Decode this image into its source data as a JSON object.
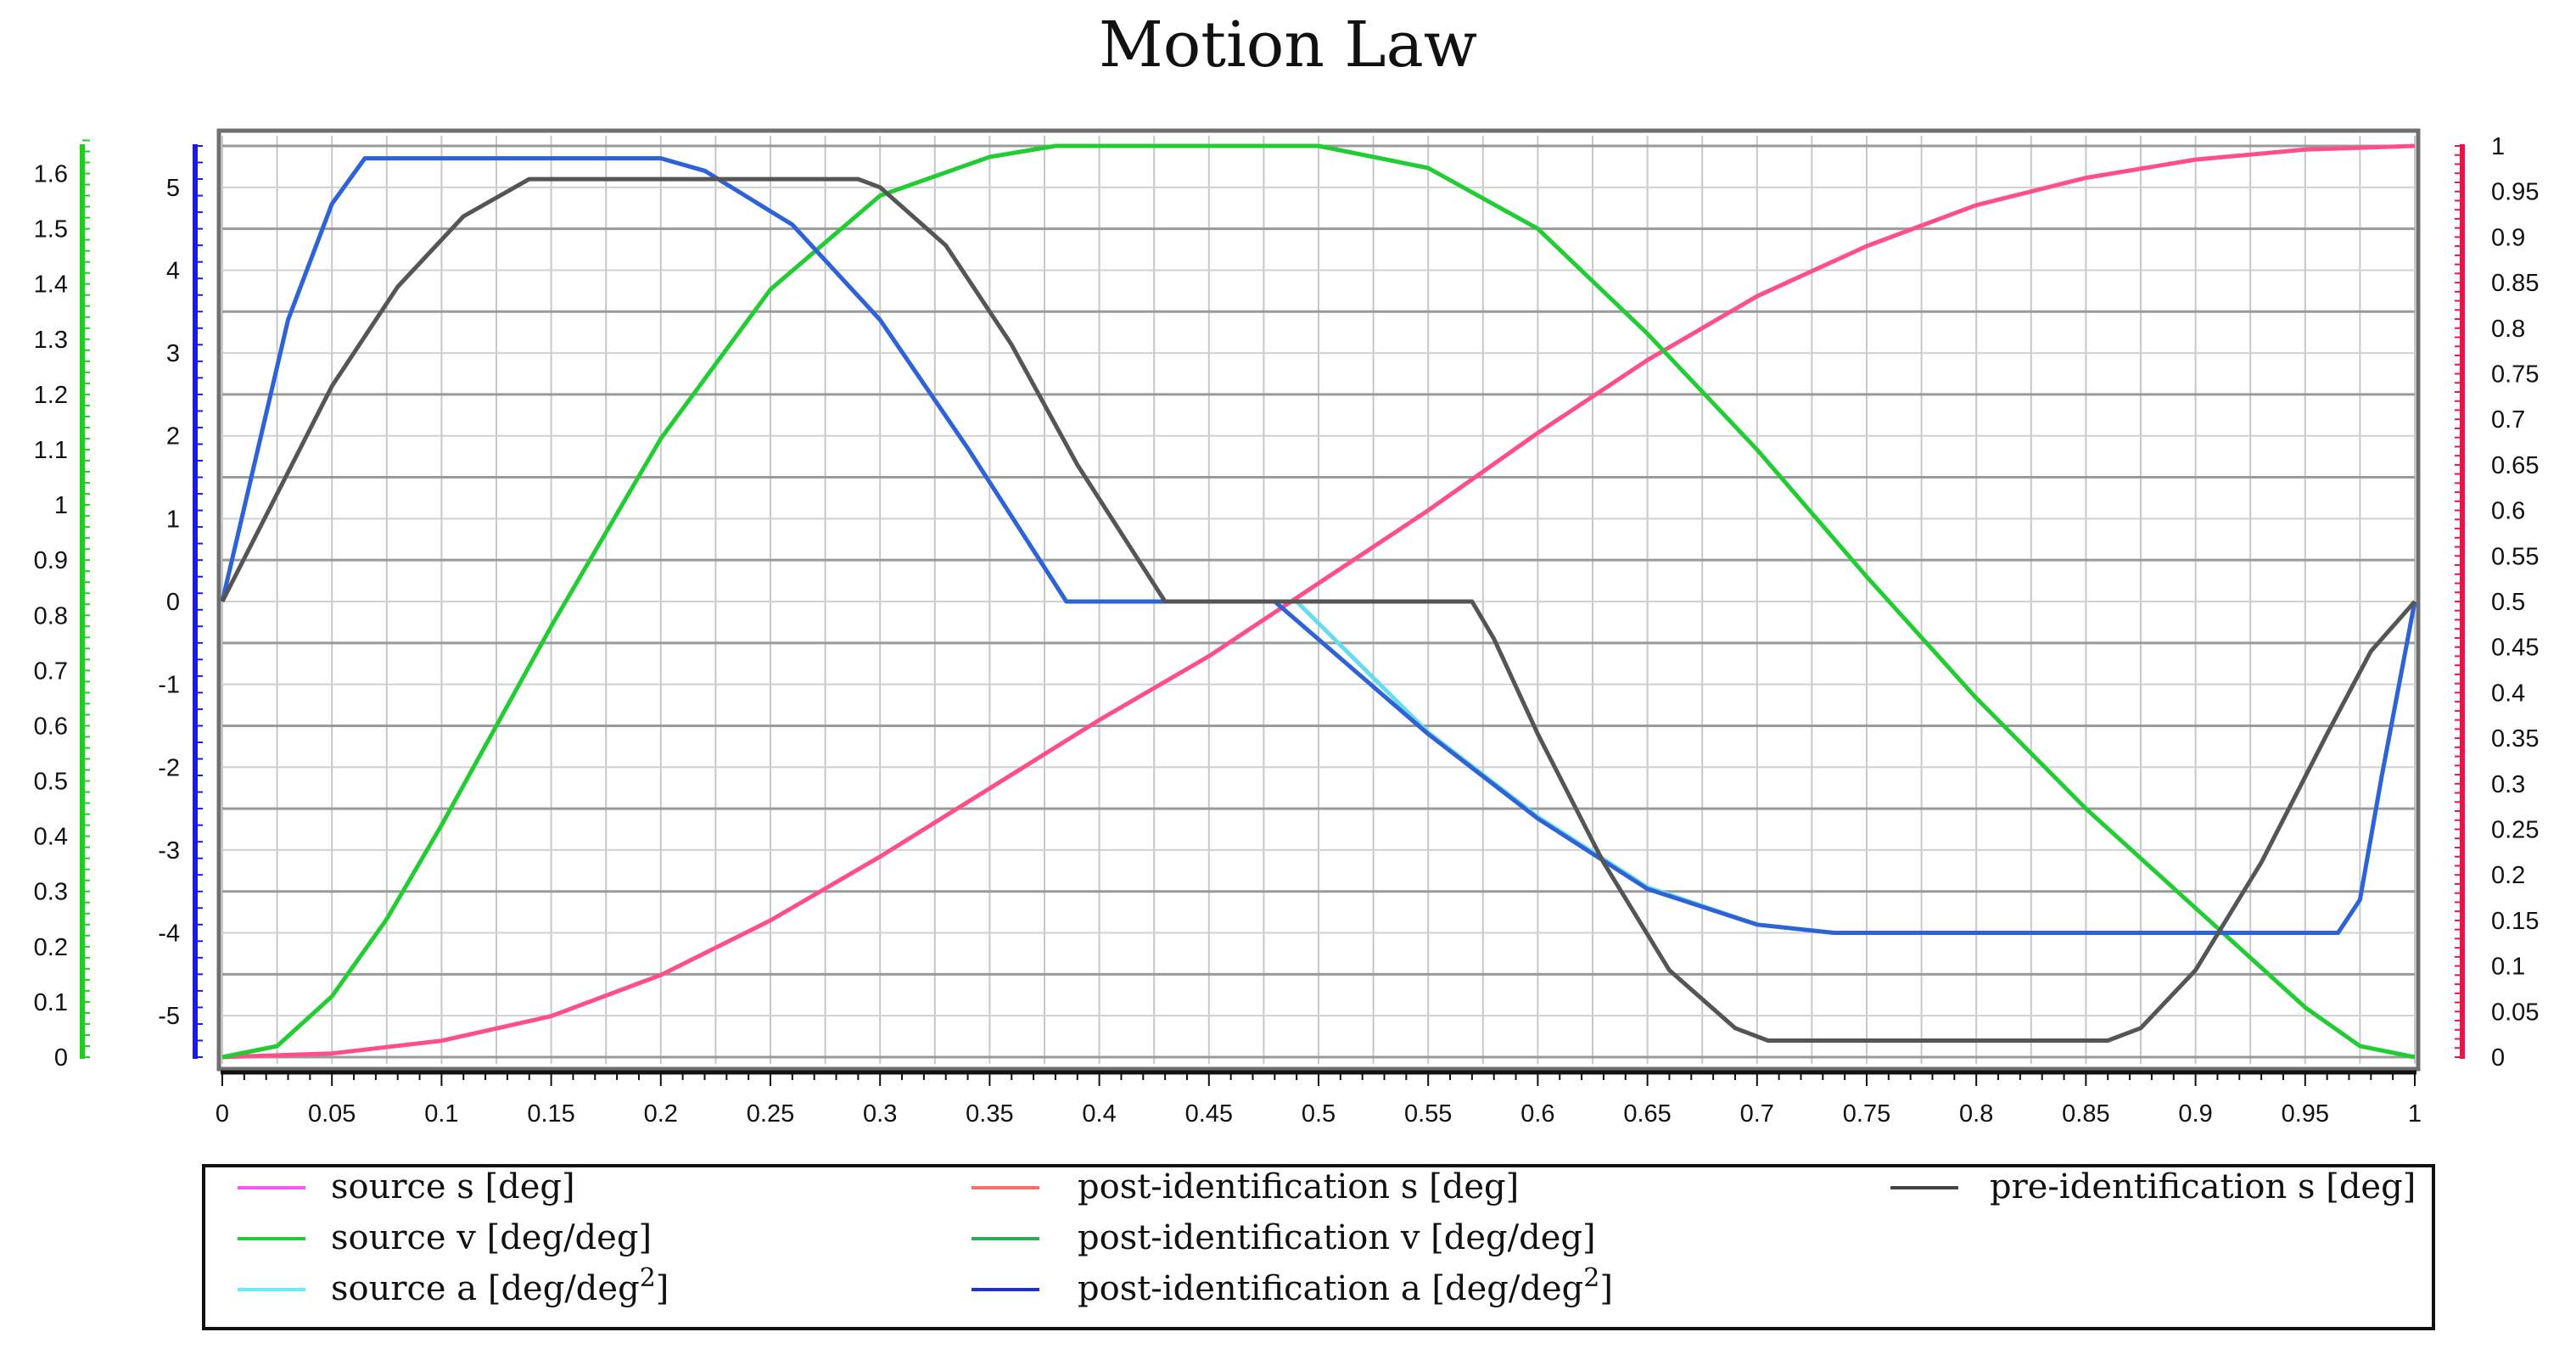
{
  "chart_data": {
    "type": "line",
    "title": "Motion Law",
    "x": {
      "range": [
        0,
        1
      ],
      "ticks": [
        "0",
        "0.05",
        "0.1",
        "0.15",
        "0.2",
        "0.25",
        "0.3",
        "0.35",
        "0.4",
        "0.45",
        "0.5",
        "0.55",
        "0.6",
        "0.65",
        "0.7",
        "0.75",
        "0.8",
        "0.85",
        "0.9",
        "0.95",
        "1"
      ]
    },
    "axes": {
      "velocity": {
        "color": "#22cc22",
        "range": [
          0,
          1.65
        ],
        "ticks": [
          "0",
          "0.1",
          "0.2",
          "0.3",
          "0.4",
          "0.5",
          "0.6",
          "0.7",
          "0.8",
          "0.9",
          "1",
          "1.1",
          "1.2",
          "1.3",
          "1.4",
          "1.5",
          "1.6"
        ]
      },
      "acceleration": {
        "color": "#1a1aee",
        "range": [
          -5.5,
          5.5
        ],
        "ticks": [
          "-5",
          "-4",
          "-3",
          "-2",
          "-1",
          "0",
          "1",
          "2",
          "3",
          "4",
          "5"
        ]
      },
      "displacement": {
        "color": "#ee1144",
        "range": [
          0,
          1
        ],
        "ticks": [
          "0",
          "0.05",
          "0.1",
          "0.15",
          "0.2",
          "0.25",
          "0.3",
          "0.35",
          "0.4",
          "0.45",
          "0.5",
          "0.55",
          "0.6",
          "0.65",
          "0.7",
          "0.75",
          "0.8",
          "0.85",
          "0.9",
          "0.95",
          "1"
        ]
      }
    },
    "series": [
      {
        "name": "post-identification s [deg]",
        "axis": "displacement",
        "color": "#ff4f86",
        "points": [
          [
            0,
            0
          ],
          [
            0.05,
            0.004
          ],
          [
            0.1,
            0.018
          ],
          [
            0.15,
            0.045
          ],
          [
            0.2,
            0.09
          ],
          [
            0.25,
            0.15
          ],
          [
            0.3,
            0.22
          ],
          [
            0.35,
            0.295
          ],
          [
            0.4,
            0.37
          ],
          [
            0.45,
            0.44
          ],
          [
            0.5,
            0.52
          ],
          [
            0.55,
            0.6
          ],
          [
            0.6,
            0.685
          ],
          [
            0.65,
            0.765
          ],
          [
            0.7,
            0.835
          ],
          [
            0.75,
            0.89
          ],
          [
            0.8,
            0.935
          ],
          [
            0.85,
            0.965
          ],
          [
            0.9,
            0.985
          ],
          [
            0.95,
            0.996
          ],
          [
            1,
            1
          ]
        ]
      },
      {
        "name": "source v [deg/deg]",
        "axis": "velocity",
        "color": "#22cc33",
        "points": [
          [
            0,
            0
          ],
          [
            0.025,
            0.02
          ],
          [
            0.05,
            0.11
          ],
          [
            0.075,
            0.25
          ],
          [
            0.1,
            0.42
          ],
          [
            0.15,
            0.78
          ],
          [
            0.2,
            1.12
          ],
          [
            0.25,
            1.39
          ],
          [
            0.3,
            1.56
          ],
          [
            0.35,
            1.63
          ],
          [
            0.38,
            1.65
          ],
          [
            0.5,
            1.65
          ],
          [
            0.55,
            1.61
          ],
          [
            0.6,
            1.5
          ],
          [
            0.65,
            1.31
          ],
          [
            0.7,
            1.1
          ],
          [
            0.75,
            0.87
          ],
          [
            0.8,
            0.65
          ],
          [
            0.85,
            0.45
          ],
          [
            0.9,
            0.27
          ],
          [
            0.95,
            0.09
          ],
          [
            0.975,
            0.02
          ],
          [
            1,
            0
          ]
        ]
      },
      {
        "name": "source a [deg/deg2]",
        "axis": "acceleration",
        "color": "#66ddee",
        "points": [
          [
            0,
            0
          ],
          [
            0.03,
            3.4
          ],
          [
            0.05,
            4.8
          ],
          [
            0.065,
            5.35
          ],
          [
            0.2,
            5.35
          ],
          [
            0.22,
            5.2
          ],
          [
            0.26,
            4.55
          ],
          [
            0.3,
            3.4
          ],
          [
            0.34,
            1.85
          ],
          [
            0.385,
            0
          ],
          [
            0.49,
            0
          ],
          [
            0.55,
            -1.58
          ],
          [
            0.6,
            -2.6
          ],
          [
            0.65,
            -3.45
          ],
          [
            0.7,
            -3.9
          ],
          [
            0.735,
            -4
          ],
          [
            0.965,
            -4
          ],
          [
            0.975,
            -3.6
          ],
          [
            0.985,
            -2.1
          ],
          [
            1,
            0
          ]
        ]
      },
      {
        "name": "post-identification a [deg/deg2]",
        "axis": "acceleration",
        "color": "#2f62d6",
        "points": [
          [
            0,
            0
          ],
          [
            0.03,
            3.4
          ],
          [
            0.05,
            4.8
          ],
          [
            0.065,
            5.35
          ],
          [
            0.2,
            5.35
          ],
          [
            0.22,
            5.2
          ],
          [
            0.26,
            4.55
          ],
          [
            0.3,
            3.4
          ],
          [
            0.34,
            1.85
          ],
          [
            0.385,
            0
          ],
          [
            0.48,
            0
          ],
          [
            0.55,
            -1.6
          ],
          [
            0.6,
            -2.62
          ],
          [
            0.65,
            -3.47
          ],
          [
            0.7,
            -3.9
          ],
          [
            0.735,
            -4
          ],
          [
            0.965,
            -4
          ],
          [
            0.975,
            -3.6
          ],
          [
            0.985,
            -2.1
          ],
          [
            1,
            0
          ]
        ]
      },
      {
        "name": "pre-identification s [deg]",
        "axis": "acceleration",
        "color": "#555555",
        "points": [
          [
            0,
            0
          ],
          [
            0.05,
            2.6
          ],
          [
            0.08,
            3.8
          ],
          [
            0.11,
            4.65
          ],
          [
            0.14,
            5.1
          ],
          [
            0.29,
            5.1
          ],
          [
            0.3,
            5.0
          ],
          [
            0.33,
            4.3
          ],
          [
            0.36,
            3.1
          ],
          [
            0.39,
            1.65
          ],
          [
            0.43,
            0
          ],
          [
            0.57,
            0
          ],
          [
            0.58,
            -0.45
          ],
          [
            0.6,
            -1.6
          ],
          [
            0.63,
            -3.15
          ],
          [
            0.66,
            -4.45
          ],
          [
            0.69,
            -5.15
          ],
          [
            0.705,
            -5.3
          ],
          [
            0.86,
            -5.3
          ],
          [
            0.875,
            -5.15
          ],
          [
            0.9,
            -4.45
          ],
          [
            0.93,
            -3.15
          ],
          [
            0.96,
            -1.6
          ],
          [
            0.98,
            -0.6
          ],
          [
            1,
            0
          ]
        ]
      }
    ],
    "legend": {
      "placement": "bottom",
      "entries": [
        {
          "label": "source s [deg]",
          "color": "#ff55ff"
        },
        {
          "label": "source v [deg/deg]",
          "color": "#22cc33"
        },
        {
          "label": "source a [deg/deg",
          "sup": "2",
          "close": "]",
          "color": "#66eeff"
        },
        {
          "label": "post-identification s [deg]",
          "color": "#ff6b6b"
        },
        {
          "label": "post-identification v [deg/deg]",
          "color": "#33aa55"
        },
        {
          "label": "post-identification a [deg/deg",
          "sup": "2",
          "close": "]",
          "color": "#2233cc"
        },
        {
          "label": "pre-identification s [deg]",
          "color": "#444444"
        }
      ]
    }
  }
}
